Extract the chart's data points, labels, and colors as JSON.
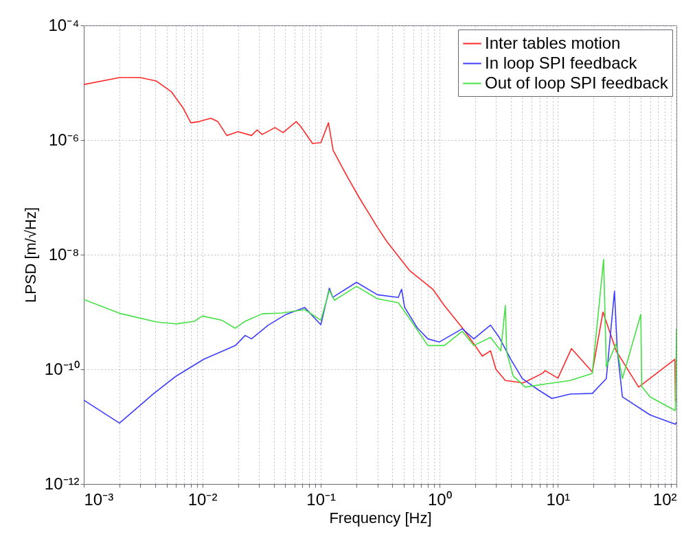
{
  "chart_data": {
    "type": "line",
    "xlabel": "Frequency [Hz]",
    "ylabel": "LPSD [m/√Hz]",
    "log": "xy",
    "grid": true,
    "legend": "top right",
    "line_style": "solid",
    "marker": "none",
    "xlim": [
      0.001,
      100
    ],
    "ylim": [
      1e-12,
      0.0001
    ],
    "xticks": [
      {
        "value": 0.001,
        "label": "10⁻³"
      },
      {
        "value": 0.002,
        "label": null
      },
      {
        "value": 0.003,
        "label": null
      },
      {
        "value": 0.004,
        "label": null
      },
      {
        "value": 0.005,
        "label": null
      },
      {
        "value": 0.006,
        "label": null
      },
      {
        "value": 0.007,
        "label": null
      },
      {
        "value": 0.008,
        "label": null
      },
      {
        "value": 0.009,
        "label": null
      },
      {
        "value": 0.01,
        "label": "10⁻²"
      },
      {
        "value": 0.02,
        "label": null
      },
      {
        "value": 0.03,
        "label": null
      },
      {
        "value": 0.04,
        "label": null
      },
      {
        "value": 0.05,
        "label": null
      },
      {
        "value": 0.06,
        "label": null
      },
      {
        "value": 0.07,
        "label": null
      },
      {
        "value": 0.08,
        "label": null
      },
      {
        "value": 0.09,
        "label": null
      },
      {
        "value": 0.1,
        "label": "10⁻¹"
      },
      {
        "value": 0.2,
        "label": null
      },
      {
        "value": 0.3,
        "label": null
      },
      {
        "value": 0.4,
        "label": null
      },
      {
        "value": 0.5,
        "label": null
      },
      {
        "value": 0.6,
        "label": null
      },
      {
        "value": 0.7,
        "label": null
      },
      {
        "value": 0.8,
        "label": null
      },
      {
        "value": 0.9,
        "label": null
      },
      {
        "value": 1,
        "label": "10⁰"
      },
      {
        "value": 2,
        "label": null
      },
      {
        "value": 3,
        "label": null
      },
      {
        "value": 4,
        "label": null
      },
      {
        "value": 5,
        "label": null
      },
      {
        "value": 6,
        "label": null
      },
      {
        "value": 7,
        "label": null
      },
      {
        "value": 8,
        "label": null
      },
      {
        "value": 9,
        "label": null
      },
      {
        "value": 10,
        "label": "10¹"
      },
      {
        "value": 20,
        "label": null
      },
      {
        "value": 30,
        "label": null
      },
      {
        "value": 40,
        "label": null
      },
      {
        "value": 50,
        "label": null
      },
      {
        "value": 60,
        "label": null
      },
      {
        "value": 70,
        "label": null
      },
      {
        "value": 80,
        "label": null
      },
      {
        "value": 90,
        "label": null
      },
      {
        "value": 100,
        "label": "10²"
      }
    ],
    "yticks": [
      {
        "value": 1e-12,
        "label": "10⁻¹²"
      },
      {
        "value": 1e-10,
        "label": "10⁻¹⁰"
      },
      {
        "value": 1e-08,
        "label": "10⁻⁸"
      },
      {
        "value": 1e-06,
        "label": "10⁻⁶"
      },
      {
        "value": 0.0001,
        "label": "10⁻⁴"
      }
    ],
    "series": [
      {
        "name": "Inter tables motion",
        "color": "#ff2828",
        "x": [
          0.001,
          0.002,
          0.003,
          0.0041,
          0.0055,
          0.0069,
          0.008,
          0.0094,
          0.0118,
          0.0135,
          0.0161,
          0.02,
          0.026,
          0.029,
          0.032,
          0.041,
          0.048,
          0.062,
          0.068,
          0.085,
          0.1,
          0.116,
          0.127,
          0.16,
          0.21,
          0.3,
          0.36,
          0.56,
          0.88,
          1.1,
          1.56,
          1.95,
          2.3,
          2.7,
          3,
          3.6,
          5.1,
          7.4,
          7.8,
          10,
          13,
          19.5,
          24,
          31,
          48,
          97,
          98,
          100
        ],
        "values": [
          9.3e-06,
          1.23e-05,
          1.23e-05,
          1.07e-05,
          6.9e-06,
          3.6e-06,
          2e-06,
          2.1e-06,
          2.4e-06,
          2.1e-06,
          1.2e-06,
          1.4e-06,
          1.2e-06,
          1.5e-06,
          1.25e-06,
          1.65e-06,
          1.35e-06,
          2.1e-06,
          1.7e-06,
          8.7e-07,
          9e-07,
          2e-06,
          6.6e-07,
          2.7e-07,
          1e-07,
          3e-08,
          1.7e-08,
          5.3e-09,
          2.5e-09,
          1.3e-09,
          5.3e-10,
          2.8e-10,
          1.7e-10,
          2.1e-10,
          1e-10,
          6.4e-11,
          5.8e-11,
          8.5e-11,
          9.5e-11,
          7e-11,
          2.3e-10,
          9e-11,
          1e-09,
          2.1e-10,
          4.9e-11,
          1.5e-10,
          2.8e-11,
          3e-11
        ]
      },
      {
        "name": "In loop SPI feedback",
        "color": "#3c3cff",
        "x": [
          0.001,
          0.002,
          0.0039,
          0.006,
          0.0103,
          0.019,
          0.023,
          0.026,
          0.036,
          0.051,
          0.073,
          0.1,
          0.118,
          0.126,
          0.2,
          0.3,
          0.45,
          0.48,
          0.5,
          0.51,
          0.65,
          0.8,
          1,
          1.56,
          1.95,
          2.7,
          3.2,
          4,
          5,
          6.8,
          8.9,
          12.7,
          19.5,
          25.6,
          30,
          31.7,
          35,
          60,
          98,
          100
        ],
        "values": [
          2.9e-11,
          1.15e-11,
          3.8e-11,
          7.6e-11,
          1.5e-10,
          2.6e-10,
          3.9e-10,
          3.4e-10,
          5.9e-10,
          9.1e-10,
          1.2e-09,
          6e-10,
          2.6e-09,
          1.8e-09,
          3.3e-09,
          2e-09,
          1.8e-09,
          2.5e-09,
          1.5e-09,
          1.2e-09,
          5.3e-10,
          3.4e-10,
          3e-10,
          5.1e-10,
          3.4e-10,
          5.9e-10,
          3.6e-10,
          1.5e-10,
          6.9e-11,
          4.4e-11,
          3.1e-11,
          3.7e-11,
          3.8e-11,
          6.9e-11,
          2.3e-09,
          2.1e-10,
          3.3e-11,
          1.6e-11,
          1.1e-11,
          1.2e-11
        ]
      },
      {
        "name": "Out of loop SPI feedback",
        "color": "#44e044",
        "x": [
          0.001,
          0.002,
          0.0041,
          0.006,
          0.0086,
          0.01,
          0.0146,
          0.019,
          0.023,
          0.032,
          0.047,
          0.073,
          0.1,
          0.118,
          0.13,
          0.2,
          0.3,
          0.45,
          0.56,
          0.8,
          1.1,
          1.56,
          1.95,
          2.7,
          3.3,
          3.6,
          3.7,
          4.2,
          5.3,
          8.1,
          12.7,
          19.5,
          24.3,
          25.6,
          31,
          35,
          50,
          51,
          60,
          98,
          100
        ],
        "values": [
          1.66e-09,
          9.5e-10,
          6.7e-10,
          6.2e-10,
          6.9e-10,
          8.5e-10,
          7.2e-10,
          5.2e-10,
          6.9e-10,
          9.3e-10,
          9.6e-10,
          1.1e-09,
          7.2e-10,
          2.4e-09,
          1.6e-09,
          2.8e-09,
          1.7e-09,
          1.45e-09,
          7.7e-10,
          2.6e-10,
          2.6e-10,
          4.6e-10,
          2.6e-10,
          3.6e-10,
          2.1e-10,
          1.3e-09,
          2e-10,
          7.6e-11,
          4.9e-11,
          5.6e-11,
          6.4e-11,
          8.5e-11,
          8.3e-09,
          1.1e-10,
          2.8e-10,
          6.9e-11,
          9.1e-10,
          5e-11,
          3.3e-11,
          1.9e-11,
          5.2e-10
        ]
      }
    ]
  }
}
